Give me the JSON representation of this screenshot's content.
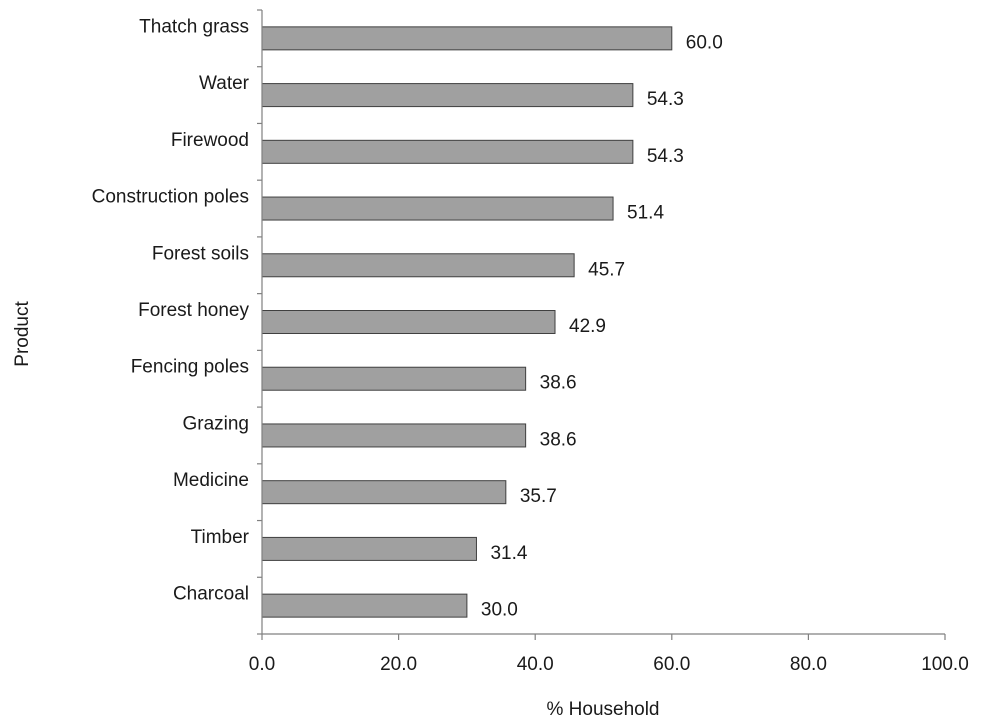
{
  "chart_data": {
    "type": "bar",
    "orientation": "horizontal",
    "xlabel": "% Household",
    "ylabel": "Product",
    "xlim": [
      0,
      100
    ],
    "xticks": [
      "0.0",
      "20.0",
      "40.0",
      "60.0",
      "80.0",
      "100.0"
    ],
    "categories": [
      "Thatch grass",
      "Water",
      "Firewood",
      "Construction poles",
      "Forest soils",
      "Forest honey",
      "Fencing poles",
      "Grazing",
      "Medicine",
      "Timber",
      "Charcoal"
    ],
    "values": [
      60.0,
      54.3,
      54.3,
      51.4,
      45.7,
      42.9,
      38.6,
      38.6,
      35.7,
      31.4,
      30.0
    ],
    "value_labels": [
      "60.0",
      "54.3",
      "54.3",
      "51.4",
      "45.7",
      "42.9",
      "38.6",
      "38.6",
      "35.7",
      "31.4",
      "30.0"
    ],
    "bar_color": "#a0a0a0",
    "bar_edge_color": "#404040",
    "grid": false,
    "legend": "none"
  }
}
